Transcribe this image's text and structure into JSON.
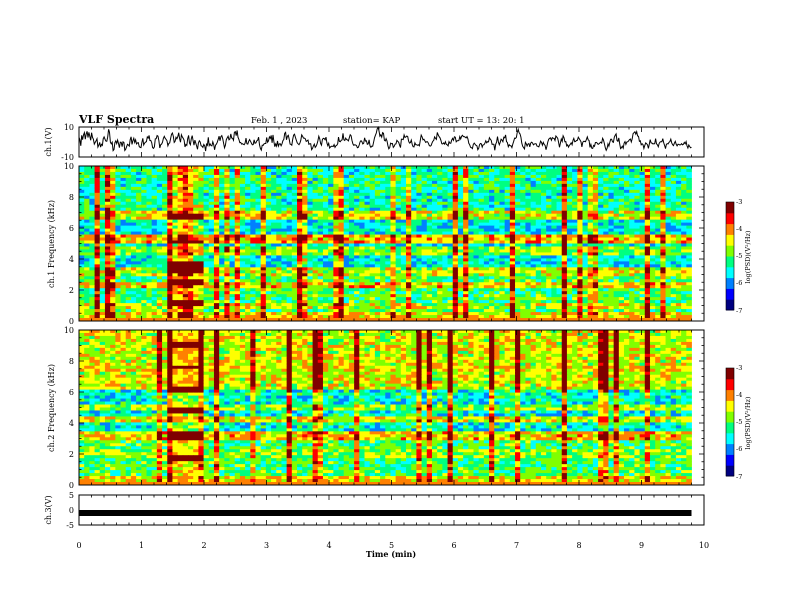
{
  "header": {
    "title": "VLF Spectra",
    "date": "Feb. 1 , 2023",
    "station": "station= KAP",
    "start": "start UT = 13: 20: 1"
  },
  "colormap": [
    "#000080",
    "#0000ff",
    "#0080ff",
    "#00ffff",
    "#00ff80",
    "#80ff00",
    "#ffff00",
    "#ff8000",
    "#ff0000",
    "#800000"
  ],
  "chart_data": [
    {
      "type": "line",
      "panel": "ch1",
      "ylabel": "ch.1(V)",
      "ylim": [
        -10,
        10
      ],
      "yticks": [
        "10",
        "-10"
      ],
      "xlim": [
        0,
        10
      ],
      "x_end": 9.8,
      "samples": [
        3.1,
        1.4,
        -2.5,
        4.5,
        1.6,
        4.7,
        6.3,
        1.9,
        5.4,
        7.1,
        3,
        6.5,
        3.8,
        1.1,
        6.2,
        3.1,
        1.8,
        -1.4,
        -0.3,
        0.8,
        2.1,
        -3.4,
        -2.1,
        -0.3,
        -3.4,
        -1.5,
        -2.2,
        2.1,
        3.4,
        1.9,
        0.6,
        0.5,
        3.3,
        8.5,
        6.5,
        -0.1,
        -1.2,
        -0.1,
        -5.7,
        -5,
        -0.4,
        0.7,
        -1,
        1.3,
        -1,
        -3.8,
        -0.1,
        -0.2,
        -3.1,
        0.1,
        -0.3,
        -5.6,
        -4.8,
        -3.1,
        -1.5,
        -2,
        -2.7,
        1.6,
        3.5,
        -1.6,
        0.9,
        2.5,
        -0.3,
        1.5,
        -1.3,
        -0.6,
        -0.4,
        -3,
        -3.6,
        -3.7,
        -0.2,
        2.5,
        -2,
        -0.8,
        -0.1,
        0.2,
        3.4,
        2.6,
        4.4,
        1,
        1,
        -0.4,
        -3.7,
        -4.3,
        -3.2,
        2.1,
        2.2,
        4.3,
        3.9,
        0.8,
        -4,
        -1.8,
        -1.4,
        -0.1,
        2.5,
        3.8,
        2.5,
        1.7,
        0.7,
        -2.5,
        -1,
        -0.6,
        2.3,
        5.1,
        6,
        3.9,
        -0.3,
        0.5,
        3.1,
        2.1,
        3.6,
        6.2,
        2.3,
        -0.1,
        4.8,
        3.4,
        2.5,
        1.3,
        -3.3,
        -1.6,
        -2.3,
        2.2,
        4.4,
        -0.7,
        -1.8,
        2.2,
        4.3,
        0.9,
        -2.1,
        1.3,
        -0.7,
        -2.8,
        -4.9,
        -0.7,
        0.8,
        0,
        -2.5,
        -2.8,
        -3.6,
        -1.6,
        -2.5,
        -6,
        -1.4,
        -2.2,
        3.1,
        -2.4,
        -1.3,
        -2.4,
        -2.6,
        0.1,
        -1.7,
        -5.2,
        -2.1,
        -1.4,
        -0.1,
        1.8,
        3.9,
        0.8,
        3.6,
        4.3,
        2.3,
        -0.8,
        -3.9,
        -2.1,
        1.6,
        2.7,
        3.9,
        1.5,
        2,
        5.4,
        2.6,
        2.5,
        1.1,
        6.5,
        6.9,
        4.2,
        7.7,
        3.2,
        1.7,
        -0.4,
        -0.3,
        -1.4,
        -1.1,
        -1.5,
        -1.8,
        -0.7,
        2.6,
        -1.2,
        -1.4,
        0.5,
        1.6,
        0.5,
        -0.7,
        -1.9,
        -1.7,
        1.5,
        -0.9,
        -0.6,
        0.8,
        1.2,
        3.2,
        -1.9,
        -4.3,
        -5.4,
        -2.1,
        -2.3,
        -1.3,
        -1,
        -1,
        3,
        -0.1,
        0.7,
        3.4,
        2.4,
        4.4,
        -0.5,
        4.7,
        0.2,
        -3.1,
        -1.3,
        -2.7,
        0.7,
        -2.7,
        -1.3,
        -1.1,
        -2.5,
        -1.2,
        0.9,
        1.7,
        5.7,
        6.4,
        1.5,
        3.9,
        4.5,
        1.9,
        -1.4,
        -1.6,
        -2.1,
        1.7,
        4.6,
        5.2,
        3.1,
        1.3,
        -0.5,
        -1.2,
        -1.8,
        -0.7,
        1.2,
        4.7,
        3.8,
        2.6,
        2.6,
        2.1,
        0.4,
        0.8,
        1.3,
        -1.5,
        -1.1,
        -1.1,
        -5.1,
        -4.3,
        -2.6,
        -1.4,
        -3.6,
        -2.8,
        -1.4,
        0.9,
        3.9,
        2.2,
        -1,
        -2.1,
        1.7,
        2.5,
        2.3,
        1.5,
        3.3,
        -0.6,
        -2.4,
        -0.9,
        -4,
        -3.3,
        -2.9,
        -2.9,
        -3,
        -1.7,
        -3.6,
        -2.5,
        -2.2,
        -1.1,
        3.3,
        0.4,
        0.1,
        1.1,
        1.4,
        5.8,
        1.5,
        1,
        2.6,
        1.6,
        1.4,
        0.7,
        2.9,
        4.9,
        4.2,
        1,
        -1.3,
        -2.2,
        -1.9,
        -2,
        -2.4,
        -3.8,
        -3.6,
        -2,
        0.1,
        0.9,
        0.2,
        -1.3,
        -0.8,
        2.8,
        0.6,
        0.8,
        -1.5,
        -1.3,
        1.5,
        -2.5,
        -3.5,
        -2.7,
        -2.8,
        -0.1,
        2.7,
        4.5,
        6,
        8.7,
        9.8,
        7.4,
        3.9,
        4.8,
        3.3,
        6.3,
        5.8,
        1.2,
        0.7,
        2.2,
        0.7,
        -2.4,
        -4.5,
        -3.8,
        -0.8,
        -1.1,
        -1,
        -3.6,
        -2.9,
        -1.4,
        -1.2,
        1.1,
        0.4,
        -0.2,
        -2.1,
        -3.7,
        1.9,
        1.8,
        1.6,
        4.7,
        3,
        3.4,
        4,
        3.6,
        0.6,
        -0.7,
        -0.4,
        1.3,
        -1.6,
        -3.1,
        -3.3,
        -0.5,
        -1.8,
        -1.8,
        -2.2,
        -1.9,
        -2.5,
        1.1,
        4.6,
        3.4,
        1.5,
        1.9,
        0.8,
        -0.3,
        0.1,
        0.1,
        -0.9,
        -2.4,
        -2.8,
        -2.4,
        -0.7,
        0.5,
        1,
        3.4,
        2.5,
        1.7,
        6.4,
        4.7,
        3.6,
        2.8,
        1.1,
        -1.1,
        -1.3,
        -0.6,
        -1.4,
        0.2,
        -1.6,
        -1.9,
        -2.6,
        0.3,
        -0.8,
        -0.8,
        1.3,
        2.4,
        1.1,
        3.5,
        3.2,
        0.1,
        0.8,
        0.8,
        1,
        3.6,
        2,
        3.8,
        4.5,
        3.6,
        3.6,
        3.2,
        2.7,
        3.6,
        2.1,
        -0.9,
        -1.9,
        -3.6,
        -3.8,
        -4.4,
        -1.6,
        -0.7,
        -1.5,
        -2.2,
        -2.5,
        -5.1,
        -4.2,
        -1.9,
        -1,
        -1.2,
        -3.4,
        -1.9,
        -1.8,
        -0.8,
        0.8,
        -0.5,
        0.2,
        0.1,
        2.9,
        1.9,
        1.1,
        -1.6,
        -1.4,
        -1.6,
        -5.5,
        -1.5,
        0,
        3.6,
        0,
        -1.8,
        -0.2,
        1.9,
        1.3,
        0.2,
        3.2,
        2.8,
        4.7,
        0.3,
        -0.4,
        -3.1,
        -1.8,
        -2.5,
        -2.5,
        -3.7,
        -1.4,
        0.5,
        2.6,
        2.4,
        3.1,
        6.6,
        8.4,
        6.2,
        5.4,
        3.3,
        -0.8,
        -2.9,
        -3.7,
        -4.6,
        -0.3,
        -1.3,
        -2.7,
        -1.4,
        -1,
        -3.3,
        -0.7,
        -0.1,
        -0.6,
        -1.9,
        -1.4,
        -1.1,
        -1.1,
        -2.7,
        -2.9,
        -3.3,
        -1.5,
        0.6,
        -0.2,
        -2.1,
        -0.3,
        -1.6,
        -2.3,
        -5.1,
        -2.8,
        0,
        1.8,
        2.5,
        2.8,
        1.1,
        2.9,
        2.5,
        2.4,
        1,
        4,
        3.3,
        2.5,
        -0.3,
        -3.5,
        -0.7,
        2,
        0.4,
        4.1,
        2.9,
        0.2,
        0.3,
        -2.6,
        -1.9,
        -3.4,
        -2.2,
        -1.5,
        -0.5,
        -1.9,
        1.1,
        2.4,
        0.2,
        0.4,
        1,
        1.1,
        3.2,
        2.3,
        1.3,
        0.1,
        -3.3,
        -0.1,
        0.5,
        0.4,
        0.2,
        1.7,
        3.4,
        1.4,
        1,
        -3.6,
        -1.6,
        -4.1,
        -4.3,
        -2.3,
        -2.9,
        -0.4,
        -0.3,
        -0.7,
        -1.5,
        -1.2,
        -0.6,
        -0.1,
        -0.7,
        2.5,
        1.3,
        -1.1,
        -3.8,
        -5.5,
        -4.3,
        -1.2,
        -2.8,
        -0.3,
        1.9,
        1.9,
        0.1,
        -0.2,
        3.1,
        4.5,
        5.4,
        1,
        0.5,
        2.7,
        -1.3,
        -4.4,
        -3.9,
        -2.8,
        -4.1,
        -0.8,
        0.3,
        -1.6,
        0,
        0.1,
        0.7,
        1.6,
        2,
        0,
        2.1,
        5.6,
        6.2,
        6.8,
        5.3,
        6.9,
        4,
        3.8,
        0.5,
        0.8,
        -1.9,
        -1.1,
        -1.7,
        -4.3,
        -2.3,
        -0.6,
        -1.1,
        -1.9,
        -4.3,
        -1.4,
        1.6,
        -0.6,
        -0.7,
        -1.3,
        -1.1,
        -1.1,
        2.3,
        -1.2,
        -1.9,
        -3.2,
        -0.9,
        0,
        0.3,
        0.2,
        2.3,
        -0.5,
        -2.3,
        -4.4,
        -1.5,
        -1.1,
        -1.3,
        -0.2,
        0.3,
        1.9,
        -0.5,
        -1.8,
        -2.4,
        -0.7,
        0.5,
        -1.5,
        -2.6,
        -1.5,
        -1.6,
        -2,
        -1.8,
        -1.1,
        -1.9,
        -1.5,
        -0.3,
        -1.2,
        0.3,
        -2.6,
        -4,
        -2,
        -3,
        -3.8,
        -3.5
      ]
    },
    {
      "type": "heatmap",
      "panel": "ch2",
      "ylabel": "ch.1 Frequency (kHz)",
      "ylim": [
        0,
        10
      ],
      "yticks": [
        "0",
        "2",
        "4",
        "6",
        "8",
        "10"
      ],
      "xlim": [
        0,
        10
      ],
      "x_end": 9.8,
      "colorbar": {
        "label": "log(PSD)(V²/Hz)",
        "range": [
          -7,
          -3
        ],
        "ticks": [
          "-3",
          "-4",
          "-5",
          "-6",
          "-7"
        ]
      }
    },
    {
      "type": "heatmap",
      "panel": "ch2b",
      "ylabel": "ch.2 Frequency (kHz)",
      "ylim": [
        0,
        10
      ],
      "yticks": [
        "0",
        "2",
        "4",
        "6",
        "8",
        "10"
      ],
      "xlim": [
        0,
        10
      ],
      "x_end": 9.8,
      "colorbar": {
        "label": "log(PSD)(V²/Hz)",
        "range": [
          -7,
          -3
        ],
        "ticks": [
          "-3",
          "-4",
          "-5",
          "-6",
          "-7"
        ]
      }
    },
    {
      "type": "line",
      "panel": "ch3",
      "ylabel": "ch.3(V)",
      "ylim": [
        -5,
        5
      ],
      "yticks": [
        "5",
        "0",
        "-5"
      ],
      "xlim": [
        0,
        10
      ],
      "xticks": [
        "0",
        "1",
        "2",
        "3",
        "4",
        "5",
        "6",
        "7",
        "8",
        "9",
        "10"
      ],
      "xlabel": "Time (min)",
      "x": [
        0,
        9.8
      ],
      "y": [
        -1,
        -1
      ]
    }
  ]
}
